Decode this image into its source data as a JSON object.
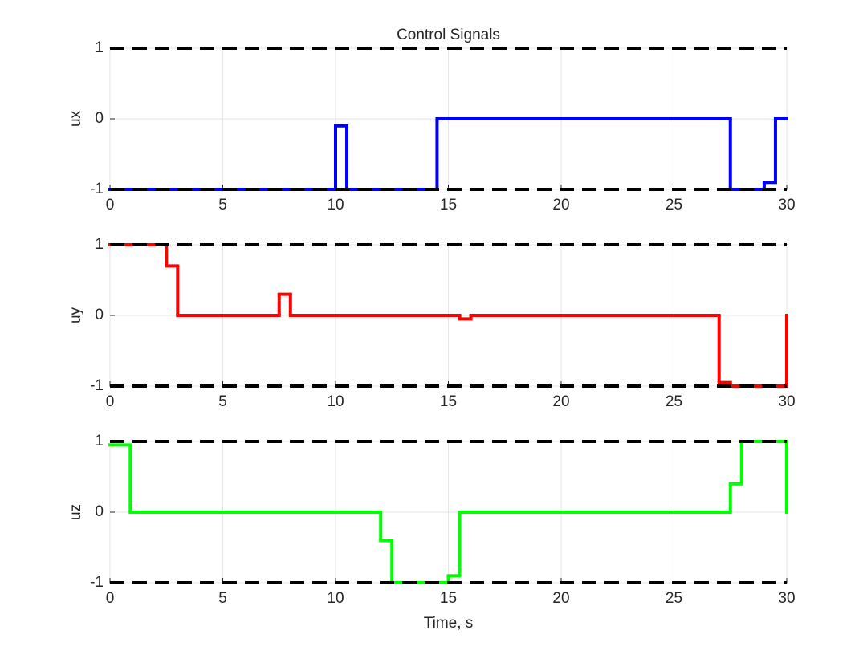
{
  "chart_data": [
    {
      "type": "step",
      "title": "Control Signals",
      "ylabel": "ux",
      "color": "#0000ff",
      "x": [
        0,
        10,
        10.5,
        14.5,
        27.5,
        29,
        29.5,
        30
      ],
      "values": [
        -1,
        -0.1,
        -1,
        0,
        -1,
        -0.9,
        0,
        0
      ],
      "xlim": [
        0,
        30
      ],
      "xticks": [
        0,
        5,
        10,
        15,
        20,
        25,
        30
      ],
      "ylim": [
        -1,
        1
      ],
      "yticks": [
        -1,
        0,
        1
      ],
      "grid": true,
      "limit_lines": [
        -1,
        1
      ],
      "limit_color": "#000000"
    },
    {
      "type": "step",
      "ylabel": "uy",
      "color": "#ff0000",
      "x": [
        0,
        2.5,
        3,
        7.5,
        8,
        15.5,
        16,
        27,
        27.5,
        30
      ],
      "values": [
        1,
        0.7,
        0,
        0.3,
        0,
        -0.05,
        0,
        -0.95,
        -1,
        0
      ],
      "xlim": [
        0,
        30
      ],
      "xticks": [
        0,
        5,
        10,
        15,
        20,
        25,
        30
      ],
      "ylim": [
        -1,
        1
      ],
      "yticks": [
        -1,
        0,
        1
      ],
      "grid": true,
      "limit_lines": [
        -1,
        1
      ],
      "limit_color": "#000000"
    },
    {
      "type": "step",
      "ylabel": "uz",
      "xlabel": "Time, s",
      "color": "#00ff00",
      "x": [
        0,
        0.9,
        12,
        12.5,
        15,
        15.5,
        27.5,
        28,
        30
      ],
      "values": [
        0.95,
        0,
        -0.4,
        -1,
        -0.9,
        0,
        0.4,
        1,
        0
      ],
      "xlim": [
        0,
        30
      ],
      "xticks": [
        0,
        5,
        10,
        15,
        20,
        25,
        30
      ],
      "ylim": [
        -1,
        1
      ],
      "yticks": [
        -1,
        0,
        1
      ],
      "grid": true,
      "limit_lines": [
        -1,
        1
      ],
      "limit_color": "#000000"
    }
  ]
}
